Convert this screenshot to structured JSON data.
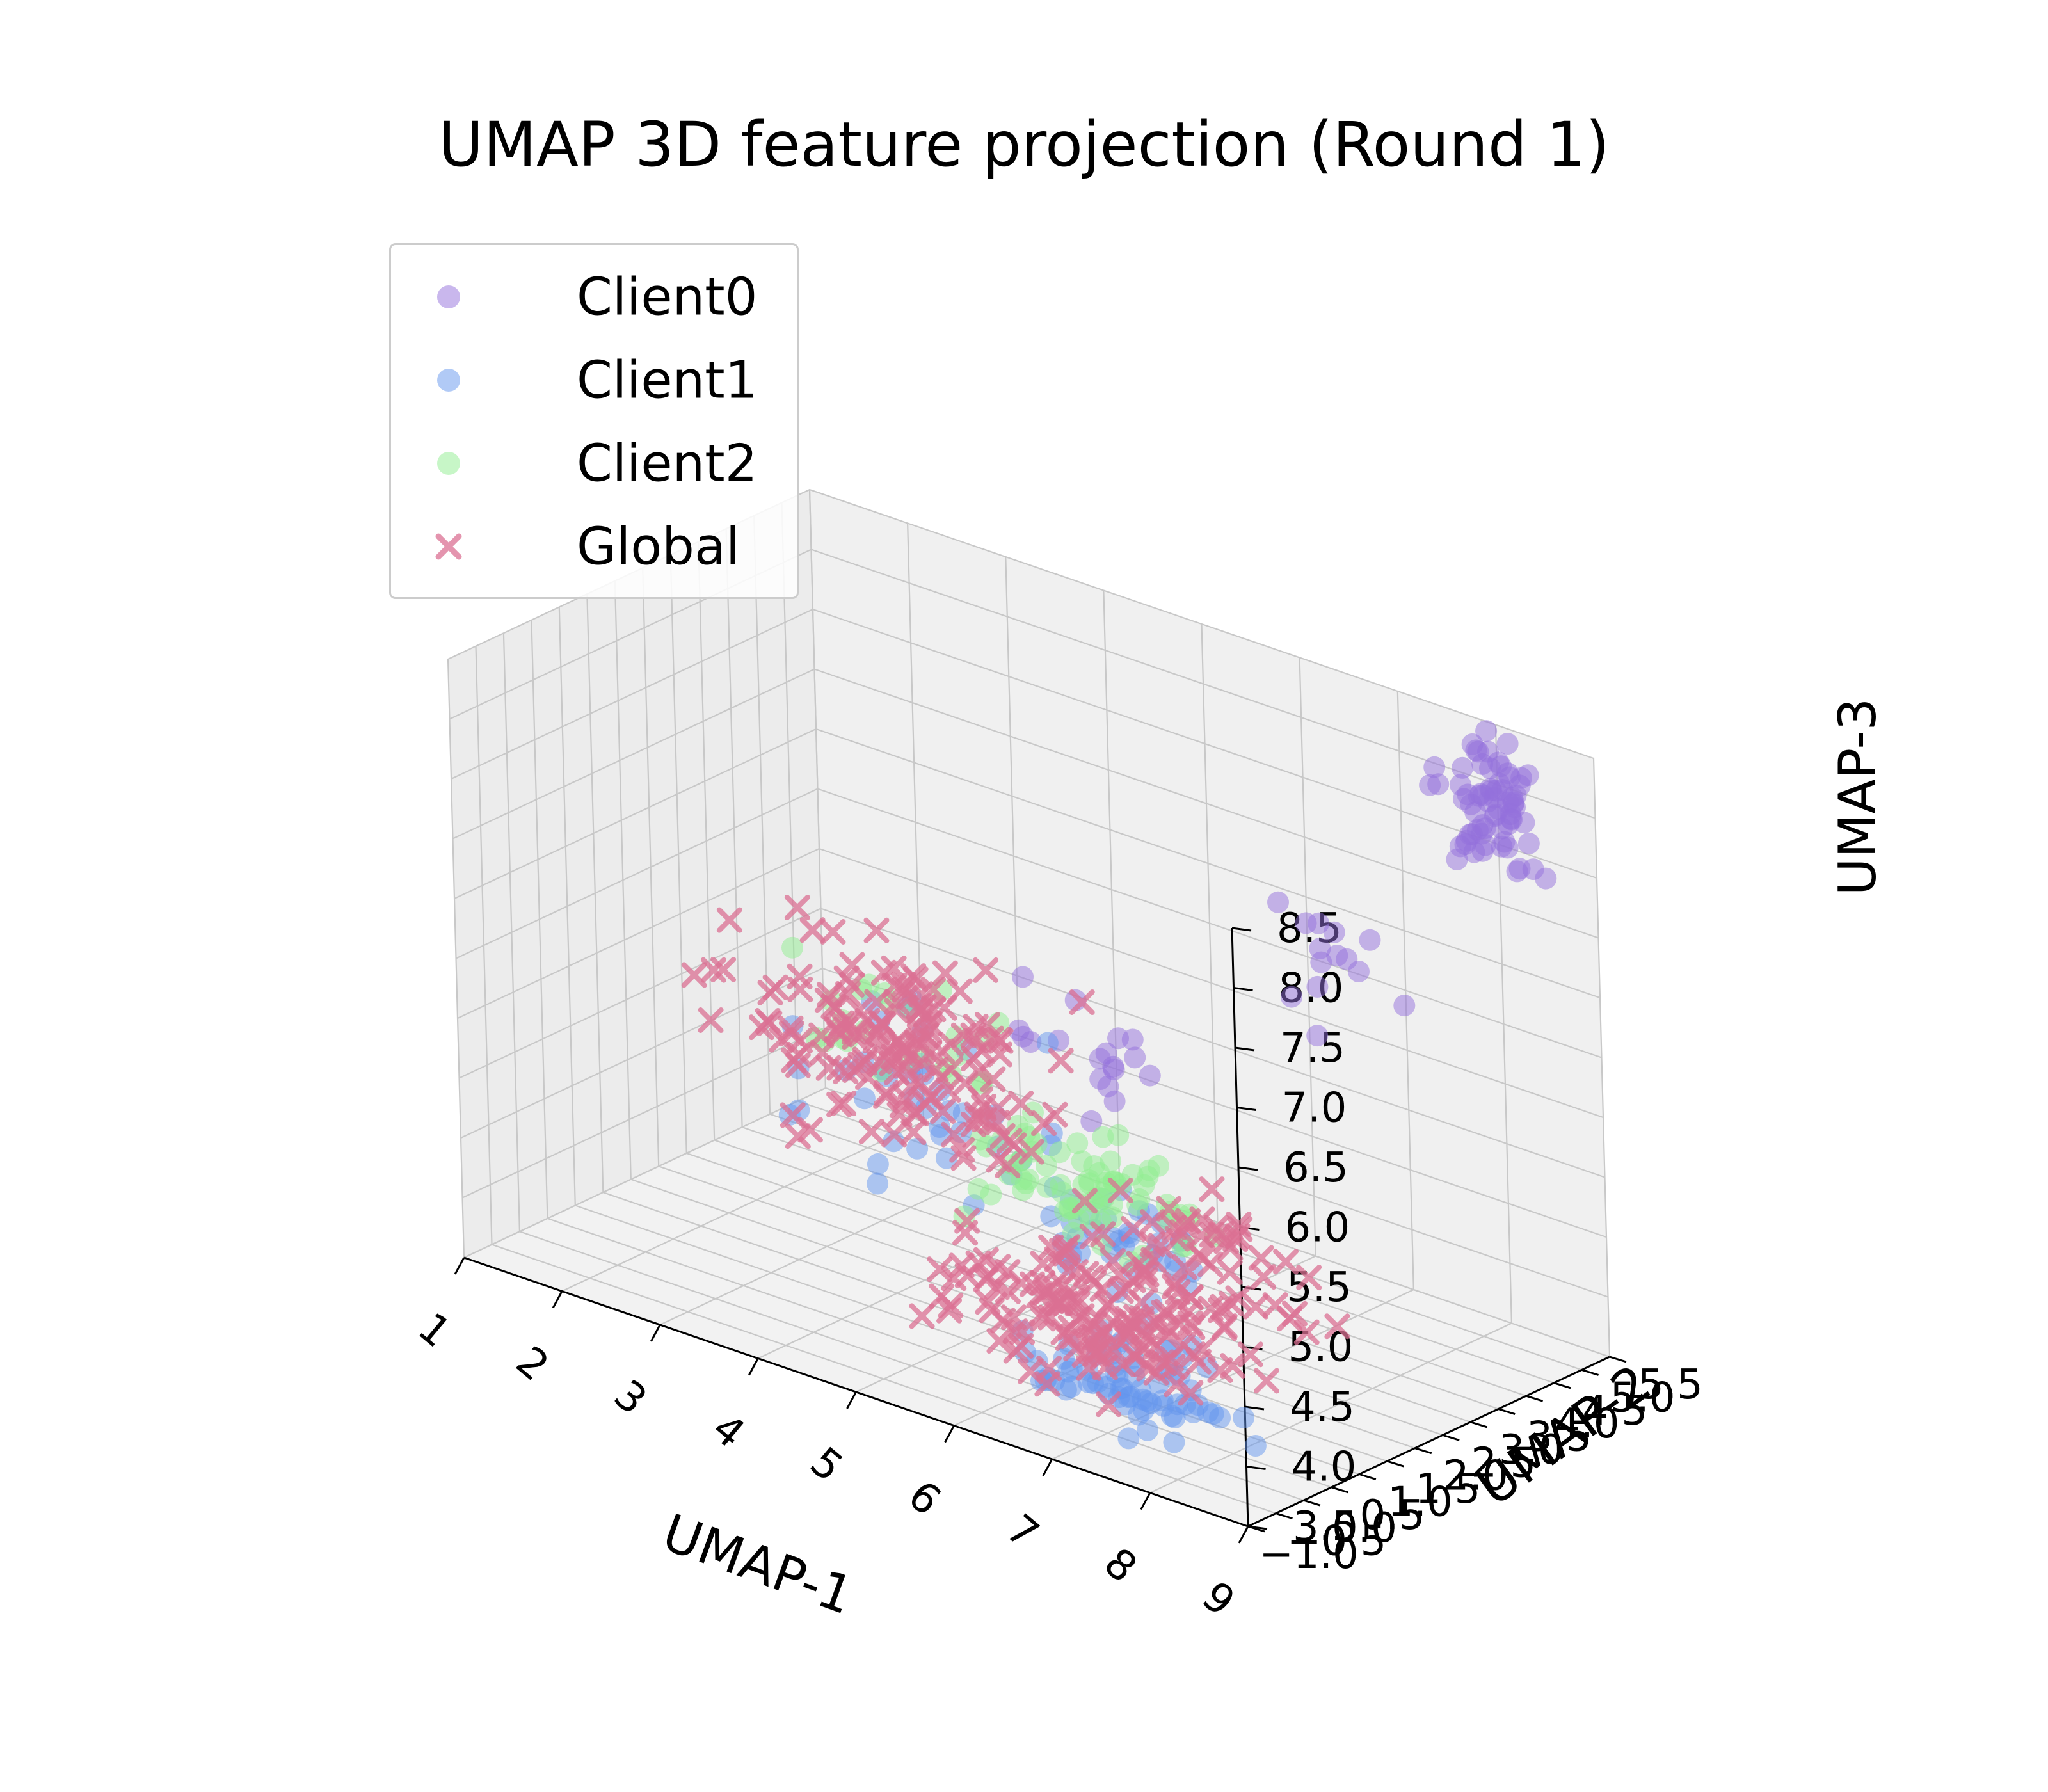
{
  "chart_data": {
    "type": "scatter",
    "title": "UMAP 3D feature projection (Round 1)",
    "xlabel": "UMAP-1",
    "ylabel": "UMAP-2",
    "zlabel": "UMAP-3",
    "xlim": [
      1,
      9
    ],
    "ylim": [
      -1.0,
      5.5
    ],
    "zlim": [
      3.5,
      8.5
    ],
    "x_ticks": [
      "1",
      "2",
      "3",
      "4",
      "5",
      "6",
      "7",
      "8",
      "9"
    ],
    "y_ticks": [
      "−1.0",
      "−0.5",
      "0.0",
      "0.5",
      "1.0",
      "1.5",
      "2.0",
      "2.5",
      "3.0",
      "3.5",
      "4.0",
      "4.5",
      "5.0",
      "5.5"
    ],
    "z_ticks": [
      "3.5",
      "4.0",
      "4.5",
      "5.0",
      "5.5",
      "6.0",
      "6.5",
      "7.0",
      "7.5",
      "8.0",
      "8.5"
    ],
    "grid": true,
    "legend_position": "upper-left",
    "series": [
      {
        "name": "Client0",
        "marker": "circle",
        "color": "#9370DB",
        "clusters": [
          {
            "x": [
              8.0,
              9.0
            ],
            "y": [
              4.0,
              5.0
            ],
            "z": [
              7.7,
              8.7
            ],
            "n": 70
          },
          {
            "x": [
              6.6,
              8.0
            ],
            "y": [
              2.8,
              4.0
            ],
            "z": [
              6.2,
              7.6
            ],
            "n": 14
          },
          {
            "x": [
              4.5,
              6.8
            ],
            "y": [
              1.5,
              3.0
            ],
            "z": [
              5.4,
              6.2
            ],
            "n": 18
          }
        ]
      },
      {
        "name": "Client1",
        "marker": "circle",
        "color": "#6495ED",
        "clusters": [
          {
            "x": [
              6.0,
              8.0
            ],
            "y": [
              -0.2,
              1.2
            ],
            "z": [
              3.4,
              4.2
            ],
            "n": 70
          },
          {
            "x": [
              2.5,
              6.0
            ],
            "y": [
              0.5,
              2.5
            ],
            "z": [
              4.4,
              5.8
            ],
            "n": 40
          },
          {
            "x": [
              5.6,
              7.4
            ],
            "y": [
              0.4,
              1.8
            ],
            "z": [
              4.3,
              5.1
            ],
            "n": 35
          }
        ]
      },
      {
        "name": "Client2",
        "marker": "circle",
        "color": "#90EE90",
        "clusters": [
          {
            "x": [
              4.5,
              7.0
            ],
            "y": [
              0.8,
              2.8
            ],
            "z": [
              4.5,
              5.2
            ],
            "n": 75
          },
          {
            "x": [
              3.0,
              5.0
            ],
            "y": [
              1.0,
              2.5
            ],
            "z": [
              5.3,
              6.0
            ],
            "n": 25
          }
        ]
      },
      {
        "name": "Global",
        "marker": "x",
        "color": "#DB7093",
        "clusters": [
          {
            "x": [
              1.8,
              5.8
            ],
            "y": [
              1.0,
              3.0
            ],
            "z": [
              4.6,
              6.2
            ],
            "n": 170
          },
          {
            "x": [
              5.0,
              8.0
            ],
            "y": [
              0.0,
              1.6
            ],
            "z": [
              3.6,
              4.6
            ],
            "n": 140
          },
          {
            "x": [
              6.0,
              8.2
            ],
            "y": [
              0.8,
              2.4
            ],
            "z": [
              4.0,
              5.2
            ],
            "n": 60
          }
        ]
      }
    ]
  }
}
